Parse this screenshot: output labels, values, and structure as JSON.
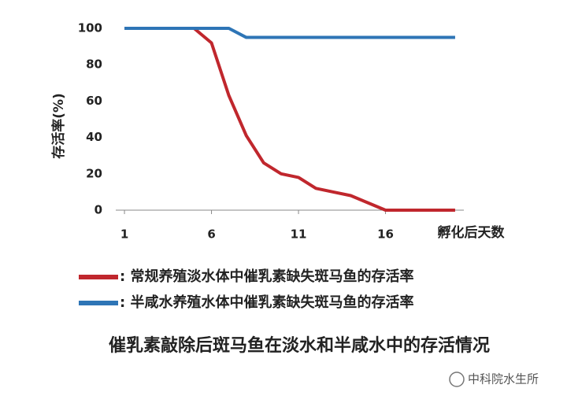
{
  "chart_data": {
    "type": "line",
    "title": "催乳素敲除后斑马鱼在淡水和半咸水中的存活情况",
    "x_label": "孵化后天数",
    "y_label": "存活率(%)",
    "x": [
      1,
      2,
      3,
      4,
      5,
      6,
      7,
      8,
      9,
      10,
      11,
      12,
      13,
      14,
      15,
      16,
      17,
      18,
      19,
      20
    ],
    "series": [
      {
        "name": ": 常规养殖淡水体中催乳素缺失斑马鱼的存活率",
        "color": "#c0272d",
        "values": [
          100,
          100,
          100,
          100,
          100,
          92,
          63,
          41,
          26,
          20,
          18,
          12,
          10,
          8,
          4,
          0,
          0,
          0,
          0,
          0
        ]
      },
      {
        "name": ": 半咸水养殖水体中催乳素缺失斑马鱼的存活率",
        "color": "#2e75b6",
        "values": [
          100,
          100,
          100,
          100,
          100,
          100,
          100,
          95,
          95,
          95,
          95,
          95,
          95,
          95,
          95,
          95,
          95,
          95,
          95,
          95
        ]
      }
    ],
    "xlim": [
      0.5,
      20.5
    ],
    "xticks": [
      1,
      6,
      11,
      16
    ],
    "ylim": [
      0,
      100
    ],
    "yticks": [
      0,
      20,
      40,
      60,
      80,
      100
    ],
    "grid": false
  },
  "watermark": "中科院水生所"
}
